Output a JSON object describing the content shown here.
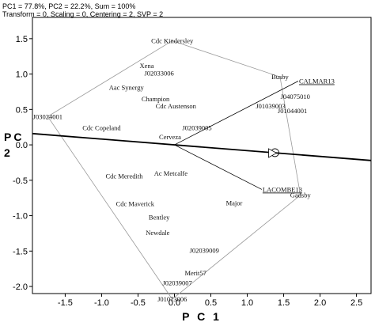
{
  "chart_data": {
    "type": "scatter",
    "header": {
      "line1": "PC1 = 77.8%, PC2 = 22.2%, Sum = 100%",
      "line2": "Transform = 0, Scaling = 0, Centering = 2, SVP = 2"
    },
    "xlabel": "P C 1",
    "ylabel": "P C 2",
    "xlim": [
      -1.95,
      2.7
    ],
    "ylim": [
      -2.1,
      1.8
    ],
    "xticks": [
      {
        "v": -1.5,
        "label": "-1.5"
      },
      {
        "v": -1.0,
        "label": "-1.0"
      },
      {
        "v": -0.5,
        "label": "-0.5"
      },
      {
        "v": 0.0,
        "label": "0.0"
      },
      {
        "v": 0.5,
        "label": "0.5"
      },
      {
        "v": 1.0,
        "label": "1.0"
      },
      {
        "v": 1.5,
        "label": "1.5"
      },
      {
        "v": 2.0,
        "label": "2.0"
      },
      {
        "v": 2.5,
        "label": "2.5"
      }
    ],
    "yticks": [
      {
        "v": 1.5,
        "label": "1.5"
      },
      {
        "v": 1.0,
        "label": "1.0"
      },
      {
        "v": 0.5,
        "label": "0.5"
      },
      {
        "v": 0.0,
        "label": "0.0"
      },
      {
        "v": -0.5,
        "label": "-0.5"
      },
      {
        "v": -1.0,
        "label": "-1.0"
      },
      {
        "v": -1.5,
        "label": "-1.5"
      },
      {
        "v": -2.0,
        "label": "-2.0"
      }
    ],
    "genotypes": [
      {
        "name": "Cdc Kindersley",
        "x": -0.03,
        "y": 1.47
      },
      {
        "name": "Xena",
        "x": -0.38,
        "y": 1.12
      },
      {
        "name": "J02033006",
        "x": -0.21,
        "y": 1.01
      },
      {
        "name": "Aac Synergy",
        "x": -0.66,
        "y": 0.81
      },
      {
        "name": "Champion",
        "x": -0.26,
        "y": 0.65
      },
      {
        "name": "Cdc Austenson",
        "x": 0.02,
        "y": 0.55
      },
      {
        "name": "J03024001",
        "x": -1.74,
        "y": 0.4
      },
      {
        "name": "Cdc Copeland",
        "x": -1.0,
        "y": 0.24
      },
      {
        "name": "Cerveza",
        "x": -0.06,
        "y": 0.11
      },
      {
        "name": "J02039005",
        "x": 0.31,
        "y": 0.24
      },
      {
        "name": "Busby",
        "x": 1.45,
        "y": 0.96
      },
      {
        "name": "J04075010",
        "x": 1.66,
        "y": 0.68
      },
      {
        "name": "J01039003",
        "x": 1.32,
        "y": 0.55
      },
      {
        "name": "J01044001",
        "x": 1.62,
        "y": 0.48
      },
      {
        "name": "Cdc Meredith",
        "x": -0.69,
        "y": -0.44
      },
      {
        "name": "Ac Metcalfe",
        "x": -0.05,
        "y": -0.4
      },
      {
        "name": "Cdc Maverick",
        "x": -0.54,
        "y": -0.83
      },
      {
        "name": "Bentley",
        "x": -0.21,
        "y": -1.02
      },
      {
        "name": "Major",
        "x": 0.82,
        "y": -0.82
      },
      {
        "name": "Newdale",
        "x": -0.23,
        "y": -1.24
      },
      {
        "name": "Gadsby",
        "x": 1.73,
        "y": -0.71
      },
      {
        "name": "J02039009",
        "x": 0.41,
        "y": -1.49
      },
      {
        "name": "Merit57",
        "x": 0.29,
        "y": -1.81
      },
      {
        "name": "J02039007",
        "x": 0.04,
        "y": -1.95
      },
      {
        "name": "J01073006",
        "x": -0.03,
        "y": -2.18
      }
    ],
    "environments": [
      {
        "name": "CALMAR13",
        "x": 1.7,
        "y": 0.9
      },
      {
        "name": "LACOMBE13",
        "x": 1.2,
        "y": -0.63
      }
    ],
    "polygon_vertices": [
      "Cdc Kindersley",
      "Busby",
      "Gadsby",
      "J01073006",
      "J03024001"
    ],
    "aec_line": {
      "slope": -0.0817
    },
    "average_environment": {
      "x": 1.38,
      "y": -0.11
    }
  }
}
